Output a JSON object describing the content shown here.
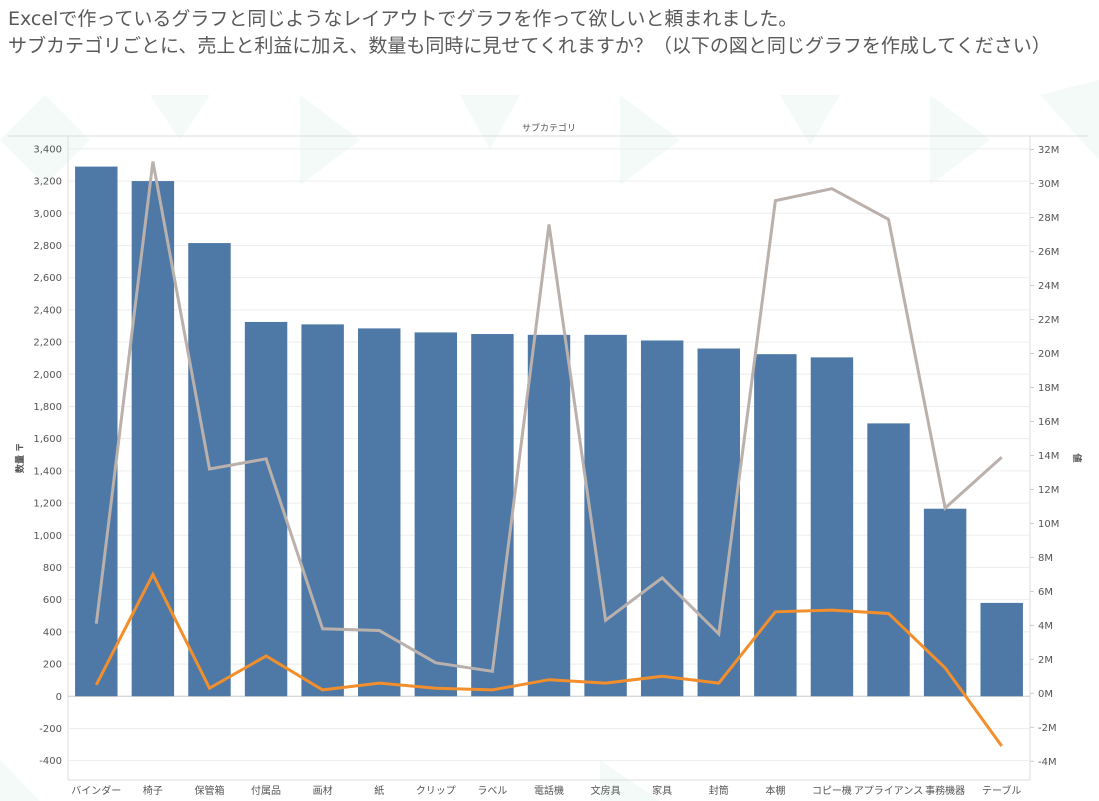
{
  "prompt": {
    "line1": "Excelで作っているグラフと同じようなレイアウトでグラフを作って欲しいと頼まれました。",
    "line2": "サブカテゴリごとに、売上と利益に加え、数量も同時に見せてくれますか？（以下の図と同じグラフを作成してください）"
  },
  "colors": {
    "bar": "#4e79a7",
    "sales_line": "#bab0ac",
    "profit_line": "#f28e2b",
    "grid": "#eeeeee",
    "text": "#555555"
  },
  "chart_data": {
    "type": "bar",
    "title": "サブカテゴリ",
    "ylabel": "数量 〒",
    "y2label": "値",
    "categories": [
      "バインダー",
      "椅子",
      "保管箱",
      "付属品",
      "画材",
      "紙",
      "クリップ",
      "ラベル",
      "電話機",
      "文房具",
      "家具",
      "封筒",
      "本棚",
      "コピー機",
      "アプライアンス",
      "事務機器",
      "テーブル"
    ],
    "y_ticks": [
      "3,400",
      "3,200",
      "3,000",
      "2,800",
      "2,600",
      "2,400",
      "2,200",
      "2,000",
      "1,800",
      "1,600",
      "1,400",
      "1,200",
      "1,000",
      "800",
      "600",
      "400",
      "200",
      "0",
      "-200",
      "-400"
    ],
    "y2_ticks": [
      "32M",
      "30M",
      "28M",
      "26M",
      "24M",
      "22M",
      "20M",
      "18M",
      "16M",
      "14M",
      "12M",
      "10M",
      "8M",
      "6M",
      "4M",
      "2M",
      "0M",
      "-2M",
      "-4M"
    ],
    "ylim": [
      -520,
      3480
    ],
    "y2lim": [
      -5.1,
      32.8
    ],
    "series": [
      {
        "kind": "bar",
        "values": [
          3290,
          3200,
          2815,
          2325,
          2310,
          2285,
          2260,
          2250,
          2245,
          2245,
          2210,
          2160,
          2125,
          2105,
          1695,
          1165,
          580
        ]
      },
      {
        "kind": "line",
        "values": [
          4.1,
          31.3,
          13.2,
          13.8,
          3.8,
          3.7,
          1.8,
          1.3,
          27.6,
          4.3,
          6.8,
          3.5,
          29.0,
          29.7,
          27.9,
          10.9,
          13.9
        ]
      },
      {
        "kind": "line",
        "values": [
          0.5,
          7.0,
          0.3,
          2.2,
          0.2,
          0.6,
          0.3,
          0.2,
          0.8,
          0.6,
          1.0,
          0.6,
          4.8,
          4.9,
          4.7,
          1.5,
          -3.1
        ]
      }
    ]
  }
}
